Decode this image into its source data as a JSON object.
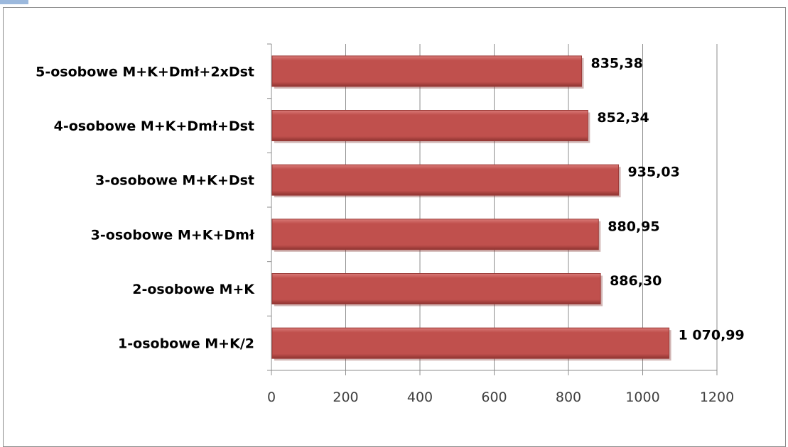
{
  "chart_data": {
    "type": "bar",
    "orientation": "horizontal",
    "categories": [
      "1-osobowe M+K/2",
      "2-osobowe M+K",
      "3-osobowe M+K+Dmł",
      "3-osobowe M+K+Dst",
      "4-osobowe M+K+Dmł+Dst",
      "5-osobowe M+K+Dmł+2xDst"
    ],
    "values": [
      1070.99,
      886.3,
      880.95,
      935.03,
      852.34,
      835.38
    ],
    "value_labels": [
      "1 070,99",
      "886,30",
      "880,95",
      "935,03",
      "852,34",
      "835,38"
    ],
    "xlim": [
      0,
      1200
    ],
    "xticks": [
      0,
      200,
      400,
      600,
      800,
      1000,
      1200
    ],
    "xtick_labels": [
      "0",
      "200",
      "400",
      "600",
      "800",
      "1000",
      "1200"
    ],
    "grid": "vertical",
    "legend": "none",
    "bar_color": "#c0504d",
    "title": "",
    "xlabel": "",
    "ylabel": ""
  }
}
